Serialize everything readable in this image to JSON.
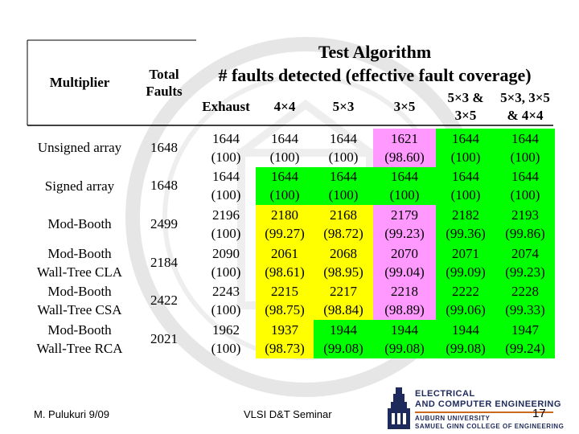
{
  "header": {
    "multiplier": "Multiplier",
    "total_faults_line1": "Total",
    "total_faults_line2": "Faults",
    "test_algorithm": "Test Algorithm",
    "faults_detected": "# faults detected (effective fault coverage)",
    "columns": [
      "Exhaust",
      "4×4",
      "5×3",
      "3×5",
      "5×3 & 3×5",
      "5×3, 3×5 & 4×4"
    ],
    "col5_line1": "5×3 &",
    "col5_line2": "3×5",
    "col6_line1": "5×3, 3×5",
    "col6_line2": "& 4×4"
  },
  "rows": [
    {
      "name_l1": "Unsigned array",
      "name_l2": "",
      "total": "1648",
      "cells": [
        [
          "1644",
          "(100)"
        ],
        [
          "1644",
          "(100)"
        ],
        [
          "1644",
          "(100)"
        ],
        [
          "1621",
          "(98.60)"
        ],
        [
          "1644",
          "(100)"
        ],
        [
          "1644",
          "(100)"
        ]
      ]
    },
    {
      "name_l1": "Signed array",
      "name_l2": "",
      "total": "1648",
      "cells": [
        [
          "1644",
          "(100)"
        ],
        [
          "1644",
          "(100)"
        ],
        [
          "1644",
          "(100)"
        ],
        [
          "1644",
          "(100)"
        ],
        [
          "1644",
          "(100)"
        ],
        [
          "1644",
          "(100)"
        ]
      ]
    },
    {
      "name_l1": "Mod-Booth",
      "name_l2": "",
      "total": "2499",
      "cells": [
        [
          "2196",
          "(100)"
        ],
        [
          "2180",
          "(99.27)"
        ],
        [
          "2168",
          "(98.72)"
        ],
        [
          "2179",
          "(99.23)"
        ],
        [
          "2182",
          "(99.36)"
        ],
        [
          "2193",
          "(99.86)"
        ]
      ]
    },
    {
      "name_l1": "Mod-Booth",
      "name_l2": "Wall-Tree CLA",
      "total": "2184",
      "cells": [
        [
          "2090",
          "(100)"
        ],
        [
          "2061",
          "(98.61)"
        ],
        [
          "2068",
          "(98.95)"
        ],
        [
          "2070",
          "(99.04)"
        ],
        [
          "2071",
          "(99.09)"
        ],
        [
          "2074",
          "(99.23)"
        ]
      ]
    },
    {
      "name_l1": "Mod-Booth",
      "name_l2": "Wall-Tree CSA",
      "total": "2422",
      "cells": [
        [
          "2243",
          "(100)"
        ],
        [
          "2215",
          "(98.75)"
        ],
        [
          "2217",
          "(98.84)"
        ],
        [
          "2218",
          "(98.89)"
        ],
        [
          "2222",
          "(99.06)"
        ],
        [
          "2228",
          "(99.33)"
        ]
      ]
    },
    {
      "name_l1": "Mod-Booth",
      "name_l2": "Wall-Tree RCA",
      "total": "2021",
      "cells": [
        [
          "1962",
          "(100)"
        ],
        [
          "1937",
          "(98.73)"
        ],
        [
          "1944",
          "(99.08)"
        ],
        [
          "1944",
          "(99.08)"
        ],
        [
          "1944",
          "(99.08)"
        ],
        [
          "1947",
          "(99.24)"
        ]
      ]
    }
  ],
  "colors": {
    "white": "#ffffff",
    "green": "#00ff00",
    "yellow": "#ffff00",
    "pink": "#ff99ff",
    "navy": "#1f2a5c"
  },
  "cell_colors": [
    [
      "white",
      "white",
      "white",
      "pink",
      "green",
      "green"
    ],
    [
      "white",
      "green",
      "green",
      "green",
      "green",
      "green"
    ],
    [
      "white",
      "yellow",
      "yellow",
      "pink",
      "green",
      "green"
    ],
    [
      "white",
      "yellow",
      "yellow",
      "pink",
      "green",
      "green"
    ],
    [
      "white",
      "yellow",
      "yellow",
      "pink",
      "green",
      "green"
    ],
    [
      "white",
      "yellow",
      "green",
      "green",
      "green",
      "green"
    ]
  ],
  "footer": {
    "author": "M. Pulukuri 9/09",
    "seminar": "VLSI D&T Seminar",
    "page": "17",
    "dept_line1": "ELECTRICAL",
    "dept_line2": "AND COMPUTER ENGINEERING",
    "univ_line1": "AUBURN UNIVERSITY",
    "univ_line2": "SAMUEL GINN COLLEGE OF ENGINEERING"
  }
}
